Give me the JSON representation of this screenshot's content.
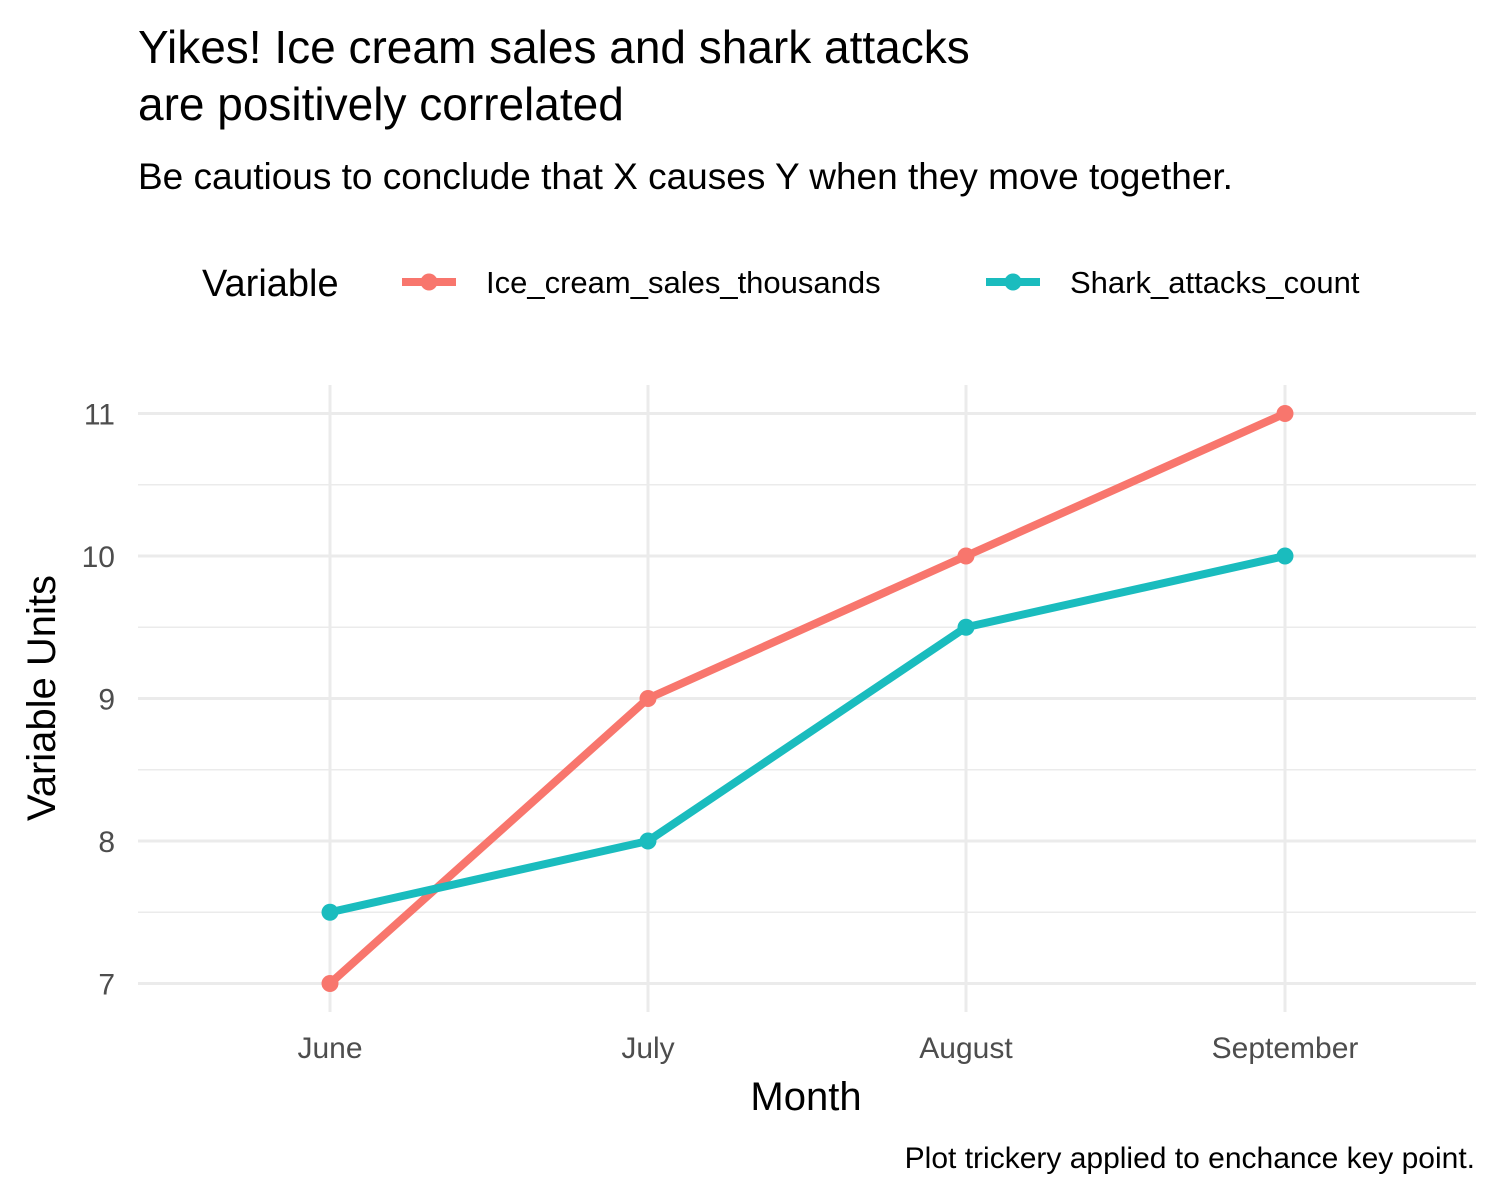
{
  "chart_data": {
    "type": "line",
    "title_lines": [
      "Yikes! Ice cream sales and shark attacks",
      "are positively correlated"
    ],
    "subtitle": "Be cautious to conclude that X causes Y when they move together.",
    "caption": "Plot trickery applied to enchance key point.",
    "xlabel": "Month",
    "ylabel": "Variable Units",
    "categories": [
      "June",
      "July",
      "August",
      "September"
    ],
    "ylim": [
      6.8,
      11.2
    ],
    "yticks": [
      "7",
      "8",
      "9",
      "10",
      "11"
    ],
    "grid": true,
    "legend": {
      "position": "top",
      "title": "Variable"
    },
    "series": [
      {
        "name": "Ice_cream_sales_thousands",
        "color": "#F8766D",
        "values": [
          7,
          9,
          10,
          11
        ]
      },
      {
        "name": "Shark_attacks_count",
        "color": "#1ABCBE",
        "values": [
          7.5,
          8,
          9.5,
          10
        ]
      }
    ]
  }
}
